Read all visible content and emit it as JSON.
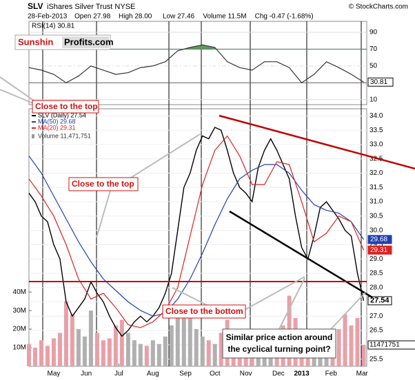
{
  "chart_data": {
    "type": "stock",
    "symbol": "SLV",
    "name": "iShares Silver Trust NYSE",
    "copyright": "© StockCharts.com",
    "date": "28-Feb-2013",
    "quote": [
      "Open 27.98",
      "High 28.00",
      "Low 27.46",
      "Volume 11.5M",
      "Chg -0.47 (-1.68%)"
    ],
    "xlim": [
      0,
      218
    ],
    "xticks": [
      {
        "value": 16,
        "label": "May"
      },
      {
        "value": 37,
        "label": "Jun"
      },
      {
        "value": 58,
        "label": "Jul"
      },
      {
        "value": 80,
        "label": "Aug"
      },
      {
        "value": 101,
        "label": "Sep"
      },
      {
        "value": 120,
        "label": "Oct"
      },
      {
        "value": 140,
        "label": "Nov"
      },
      {
        "value": 161,
        "label": "Dec"
      },
      {
        "value": 176,
        "label": "2013"
      },
      {
        "value": 195,
        "label": "Feb"
      },
      {
        "value": 215,
        "label": "Mar"
      }
    ],
    "rsi": {
      "label": "RSI(14) 30.81",
      "color": "#333333",
      "x": [
        0,
        8,
        16,
        24,
        32,
        40,
        48,
        56,
        64,
        72,
        80,
        88,
        96,
        104,
        112,
        120,
        128,
        136,
        144,
        152,
        160,
        168,
        176,
        184,
        192,
        200,
        208,
        216
      ],
      "values": [
        48,
        45,
        40,
        30,
        38,
        50,
        45,
        40,
        42,
        48,
        50,
        55,
        68,
        72,
        75,
        72,
        55,
        48,
        45,
        55,
        55,
        48,
        30,
        40,
        55,
        48,
        40,
        30.81
      ],
      "ylim": [
        4,
        103
      ],
      "yticks": [
        10,
        30,
        50,
        70,
        90
      ]
    },
    "ylim": [
      25.25,
      34.25
    ],
    "yticks": [
      25.5,
      {
        "value": 26,
        "label": "26.0"
      },
      26.5,
      {
        "value": 27,
        "label": "27.0"
      },
      27.5,
      {
        "value": 28,
        "label": "28.0"
      },
      28.5,
      {
        "value": 29,
        "label": "29.0"
      },
      29.5,
      {
        "value": 30,
        "label": "30.0"
      },
      30.5,
      {
        "value": 31,
        "label": "31.0"
      },
      31.5,
      {
        "value": 32,
        "label": "32.0"
      },
      32.5,
      {
        "value": 33,
        "label": "33.0"
      },
      33.5,
      {
        "value": 34,
        "label": "34.0"
      }
    ],
    "series": [
      {
        "name": "SLV (Daily) 27.54",
        "color": "#000000",
        "x": [
          0,
          4,
          8,
          12,
          16,
          20,
          24,
          28,
          32,
          36,
          40,
          44,
          48,
          52,
          56,
          60,
          64,
          68,
          72,
          76,
          80,
          84,
          88,
          92,
          96,
          100,
          104,
          108,
          112,
          116,
          120,
          124,
          128,
          132,
          136,
          140,
          144,
          148,
          152,
          156,
          160,
          164,
          168,
          172,
          176,
          180,
          184,
          188,
          192,
          196,
          200,
          204,
          208,
          212,
          216
        ],
        "values": [
          31.3,
          31.0,
          30.5,
          30.3,
          29.5,
          29.0,
          27.5,
          27.0,
          27.3,
          27.6,
          28.2,
          27.8,
          27.5,
          27.0,
          26.6,
          26.3,
          26.5,
          26.8,
          27.0,
          26.8,
          27.0,
          27.3,
          27.8,
          28.5,
          30.0,
          31.5,
          32.0,
          32.8,
          33.3,
          33.2,
          33.6,
          33.5,
          32.8,
          32.0,
          31.5,
          31.3,
          31.0,
          32.2,
          32.8,
          33.2,
          32.8,
          32.3,
          31.8,
          30.5,
          29.4,
          29.0,
          29.8,
          30.8,
          31.0,
          30.7,
          30.4,
          30.0,
          29.8,
          28.5,
          27.54
        ]
      },
      {
        "name": "MA(50) 29.68",
        "color": "#1f3fb0",
        "x": [
          0,
          8,
          16,
          24,
          32,
          40,
          48,
          56,
          64,
          72,
          80,
          88,
          96,
          104,
          112,
          120,
          128,
          136,
          144,
          152,
          160,
          168,
          176,
          184,
          192,
          200,
          208,
          216
        ],
        "values": [
          32.6,
          32.0,
          31.2,
          30.4,
          29.6,
          28.9,
          28.3,
          27.9,
          27.5,
          27.2,
          27.0,
          27.1,
          27.6,
          28.3,
          29.2,
          30.2,
          31.1,
          31.8,
          32.1,
          32.3,
          32.3,
          32.0,
          31.4,
          30.9,
          30.7,
          30.6,
          30.3,
          29.68
        ]
      },
      {
        "name": "MA(20) 29.31",
        "color": "#e02020",
        "x": [
          0,
          8,
          16,
          24,
          32,
          40,
          48,
          56,
          64,
          72,
          80,
          88,
          96,
          104,
          112,
          120,
          128,
          136,
          144,
          152,
          160,
          168,
          176,
          184,
          192,
          200,
          208,
          216
        ],
        "values": [
          31.8,
          31.2,
          30.5,
          29.5,
          28.3,
          27.6,
          27.8,
          27.3,
          26.7,
          26.6,
          26.8,
          27.2,
          28.0,
          29.8,
          31.6,
          32.8,
          33.3,
          32.6,
          31.6,
          31.6,
          32.4,
          32.3,
          31.0,
          29.6,
          29.9,
          30.5,
          30.3,
          29.31
        ]
      }
    ],
    "volume": {
      "name": "Volume 11,471,751",
      "color": "#e8a0a8",
      "up_color": "#b0b0b0",
      "values": [
        12,
        10,
        14,
        11,
        15,
        18,
        35,
        28,
        20,
        16,
        30,
        18,
        14,
        15,
        22,
        25,
        18,
        14,
        12,
        11,
        14,
        12,
        16,
        22,
        28,
        30,
        26,
        20,
        16,
        14,
        12,
        18,
        25,
        20,
        15,
        12,
        14,
        16,
        18,
        14,
        13,
        22,
        38,
        26,
        18,
        14,
        15,
        13,
        12,
        14,
        20,
        28,
        22,
        26,
        11.471751
      ],
      "value_labels": [
        "11471751"
      ],
      "ylim": [
        0,
        43
      ],
      "yticks": [
        {
          "value": 10,
          "label": "10M"
        },
        {
          "value": 20,
          "label": "20M"
        },
        {
          "value": 30,
          "label": "30M"
        },
        {
          "value": 40,
          "label": "40M"
        }
      ]
    },
    "annotations": [
      "Close to the top",
      "Close to the top",
      "Close to the bottom",
      "Similar price action around",
      "the cyclical turning point?"
    ],
    "logo": [
      "Sunshin",
      "Profits.com"
    ]
  }
}
